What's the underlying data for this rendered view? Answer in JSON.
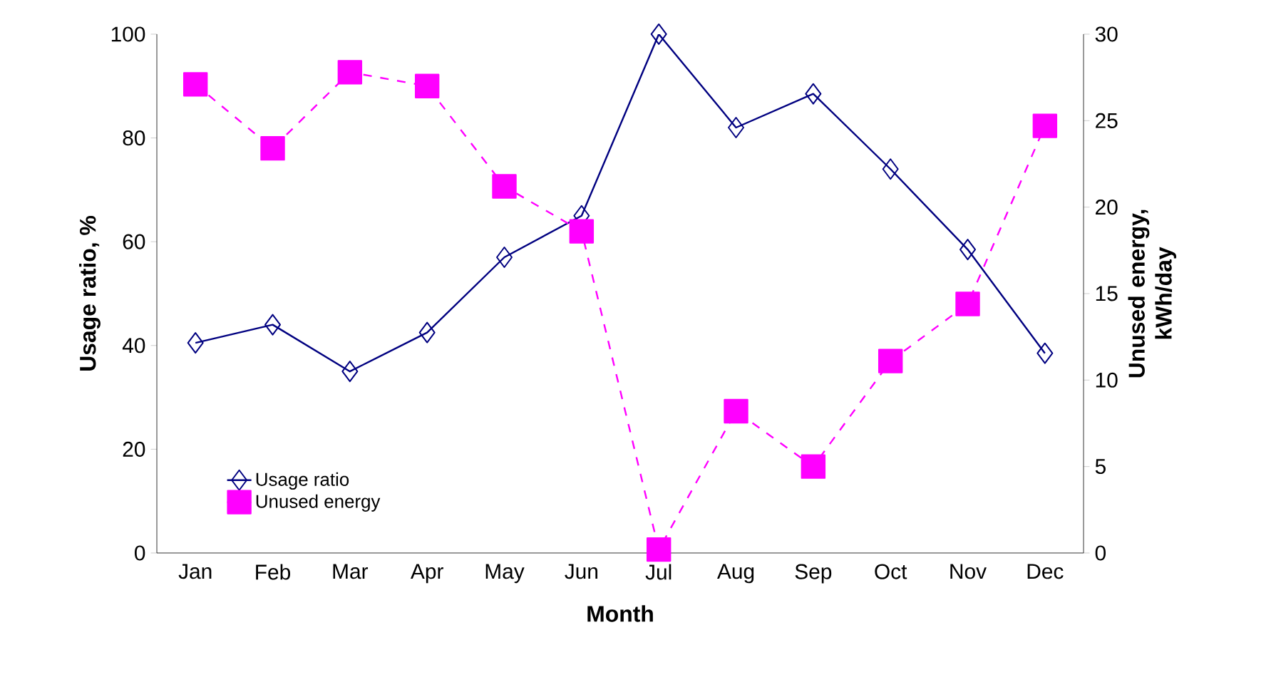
{
  "chart_data": {
    "type": "line",
    "categories": [
      "Jan",
      "Feb",
      "Mar",
      "Apr",
      "May",
      "Jun",
      "Jul",
      "Aug",
      "Sep",
      "Oct",
      "Nov",
      "Dec"
    ],
    "xlabel": "Month",
    "ylabel": "Usage ratio, %",
    "y2label": "Unused energy, kWh/day",
    "series": [
      {
        "name": "Usage ratio",
        "color": "#000080",
        "marker": "diamond",
        "line_style": "solid",
        "values": [
          40.5,
          44,
          35,
          42.5,
          57,
          65,
          100,
          82,
          88.5,
          74,
          58.5,
          38.5
        ]
      },
      {
        "name": "Unused energy",
        "color": "#ff00ff",
        "marker": "square",
        "line_style": "dotted",
        "axis": "y2",
        "values": [
          27.1,
          23.4,
          27.8,
          27,
          21.2,
          18.6,
          0.2,
          8.2,
          5,
          11.1,
          14.4,
          24.7
        ]
      }
    ],
    "ylim": [
      0,
      100
    ],
    "yticks": [
      0,
      20,
      40,
      60,
      80,
      100
    ],
    "y2lim": [
      0,
      30
    ],
    "y2ticks": [
      0,
      5,
      10,
      15,
      20,
      25,
      30
    ],
    "grid": false,
    "legend": "bottom left"
  }
}
